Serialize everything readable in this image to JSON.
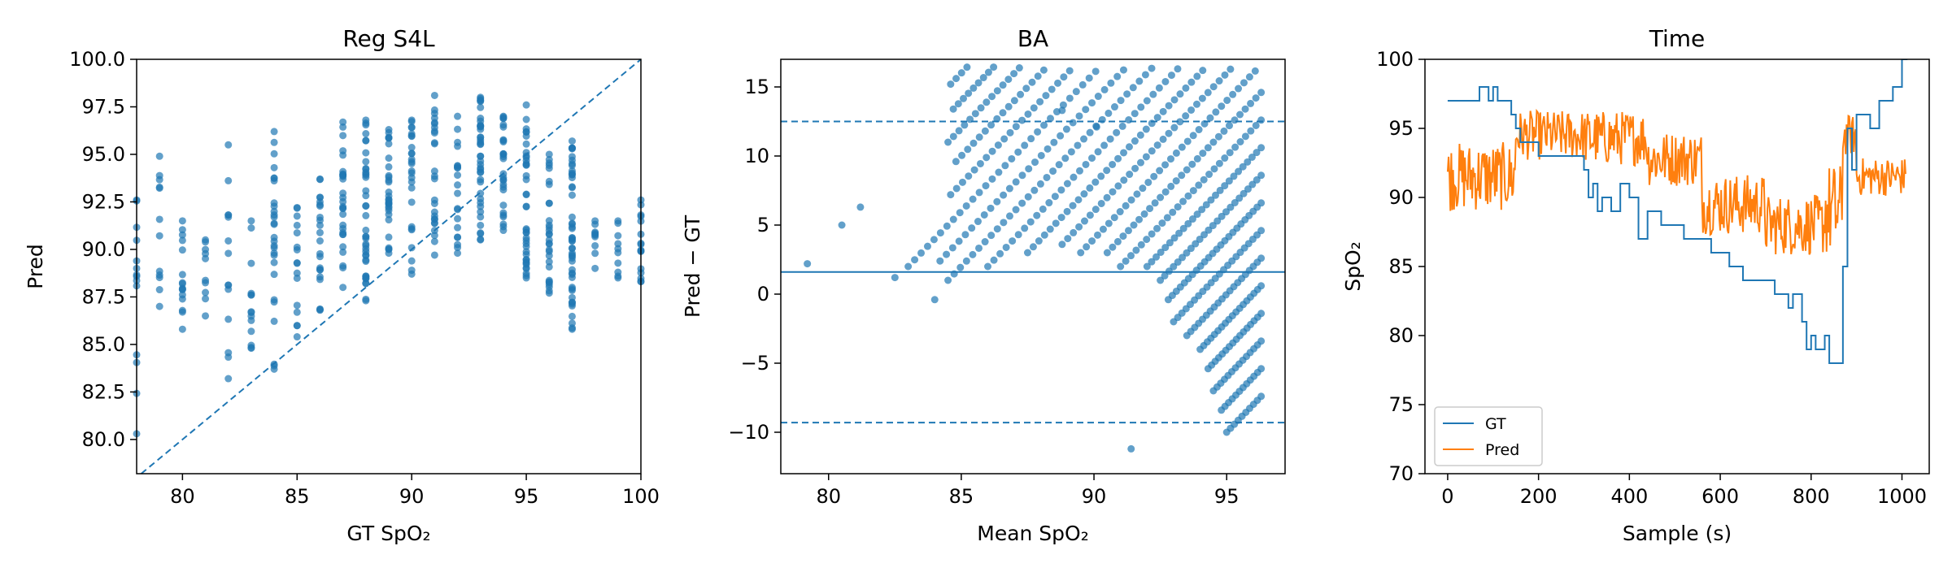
{
  "colors": {
    "blue": "#1f77b4",
    "orange": "#ff7f0e"
  },
  "chart_data": [
    {
      "type": "scatter",
      "title": "Reg S4L",
      "xlabel": "GT SpO₂",
      "ylabel": "Pred",
      "xlim": [
        78,
        100
      ],
      "ylim": [
        78.2,
        100
      ],
      "xticks": [
        80,
        85,
        90,
        95,
        100
      ],
      "yticks": [
        80.0,
        82.5,
        85.0,
        87.5,
        90.0,
        92.5,
        95.0,
        97.5,
        100.0
      ],
      "xtick_labels": [
        "80",
        "85",
        "90",
        "95",
        "100"
      ],
      "ytick_labels": [
        "80.0",
        "82.5",
        "85.0",
        "87.5",
        "90.0",
        "92.5",
        "95.0",
        "97.5",
        "100.0"
      ],
      "reference_line": "identity (y = x), dashed",
      "columns": [
        {
          "x": 78,
          "min": 80.3,
          "max": 92.6,
          "n": 14
        },
        {
          "x": 79,
          "min": 87.0,
          "max": 94.9,
          "n": 12
        },
        {
          "x": 80,
          "min": 85.8,
          "max": 91.5,
          "n": 16
        },
        {
          "x": 81,
          "min": 86.5,
          "max": 90.5,
          "n": 10
        },
        {
          "x": 82,
          "min": 83.2,
          "max": 95.5,
          "n": 14
        },
        {
          "x": 83,
          "min": 84.8,
          "max": 91.5,
          "n": 14
        },
        {
          "x": 84,
          "min": 83.7,
          "max": 96.2,
          "n": 28
        },
        {
          "x": 85,
          "min": 85.4,
          "max": 92.2,
          "n": 16
        },
        {
          "x": 86,
          "min": 86.8,
          "max": 93.7,
          "n": 22
        },
        {
          "x": 87,
          "min": 88.0,
          "max": 96.7,
          "n": 28
        },
        {
          "x": 88,
          "min": 87.3,
          "max": 96.8,
          "n": 40
        },
        {
          "x": 89,
          "min": 89.8,
          "max": 96.3,
          "n": 30
        },
        {
          "x": 90,
          "min": 88.7,
          "max": 96.8,
          "n": 26
        },
        {
          "x": 91,
          "min": 89.7,
          "max": 98.1,
          "n": 26
        },
        {
          "x": 92,
          "min": 89.8,
          "max": 97.0,
          "n": 20
        },
        {
          "x": 93,
          "min": 90.5,
          "max": 98.0,
          "n": 40
        },
        {
          "x": 94,
          "min": 91.0,
          "max": 97.0,
          "n": 28
        },
        {
          "x": 95,
          "min": 88.5,
          "max": 97.6,
          "n": 40
        },
        {
          "x": 96,
          "min": 87.7,
          "max": 95.0,
          "n": 30
        },
        {
          "x": 97,
          "min": 85.8,
          "max": 95.7,
          "n": 50
        },
        {
          "x": 98,
          "min": 89.0,
          "max": 91.5,
          "n": 10
        },
        {
          "x": 99,
          "min": 88.5,
          "max": 91.5,
          "n": 10
        },
        {
          "x": 100,
          "min": 88.3,
          "max": 92.6,
          "n": 16
        }
      ]
    },
    {
      "type": "scatter",
      "title": "BA",
      "xlabel": "Mean SpO₂",
      "ylabel": "Pred − GT",
      "xlim": [
        78.2,
        97.2
      ],
      "ylim": [
        -13,
        17
      ],
      "xticks": [
        80,
        85,
        90,
        95
      ],
      "yticks": [
        -10,
        -5,
        0,
        5,
        10,
        15
      ],
      "xtick_labels": [
        "80",
        "85",
        "90",
        "95"
      ],
      "ytick_labels": [
        "−10",
        "−5",
        "0",
        "5",
        "10",
        "15"
      ],
      "mean_line": 1.6,
      "loa_upper": 12.5,
      "loa_lower": -9.3,
      "bands": [
        {
          "gt": 73,
          "m": [
            83.5,
            87.0
          ],
          "n": 22
        },
        {
          "gt": 74,
          "m": [
            84.2,
            87.0
          ],
          "n": 20
        },
        {
          "gt": 75,
          "m": [
            84.5,
            88.0
          ],
          "n": 20
        },
        {
          "gt": 76,
          "m": [
            84.3,
            87.5
          ],
          "n": 18
        },
        {
          "gt": 77,
          "m": [
            84.6,
            88.5
          ],
          "n": 20
        },
        {
          "gt": 78,
          "m": [
            84.7,
            90.2
          ],
          "n": 30
        },
        {
          "gt": 79,
          "m": [
            84.5,
            90.5
          ],
          "n": 30
        },
        {
          "gt": 80,
          "m": [
            84.8,
            91.2
          ],
          "n": 30
        },
        {
          "gt": 81,
          "m": [
            84.6,
            92.0
          ],
          "n": 34
        },
        {
          "gt": 82,
          "m": [
            83.0,
            92.5
          ],
          "n": 40
        },
        {
          "gt": 83,
          "m": [
            84.2,
            93.5
          ],
          "n": 40
        },
        {
          "gt": 84,
          "m": [
            84.5,
            94.5
          ],
          "n": 44
        },
        {
          "gt": 85,
          "m": [
            86.0,
            95.0
          ],
          "n": 40
        },
        {
          "gt": 86,
          "m": [
            87.5,
            95.8
          ],
          "n": 40
        },
        {
          "gt": 87,
          "m": [
            88.8,
            96.2
          ],
          "n": 36
        },
        {
          "gt": 88,
          "m": [
            89.5,
            96.5
          ],
          "n": 34
        },
        {
          "gt": 89,
          "m": [
            90.5,
            96.3
          ],
          "n": 30
        },
        {
          "gt": 90,
          "m": [
            91.0,
            96.3
          ],
          "n": 28
        },
        {
          "gt": 91,
          "m": [
            92.0,
            96.3
          ],
          "n": 26
        },
        {
          "gt": 92,
          "m": [
            92.5,
            96.3
          ],
          "n": 24
        },
        {
          "gt": 93,
          "m": [
            92.8,
            96.3
          ],
          "n": 24
        },
        {
          "gt": 94,
          "m": [
            93.0,
            96.3
          ],
          "n": 22
        },
        {
          "gt": 95,
          "m": [
            93.5,
            96.3
          ],
          "n": 20
        },
        {
          "gt": 96,
          "m": [
            94.0,
            96.3
          ],
          "n": 18
        },
        {
          "gt": 97,
          "m": [
            94.3,
            96.3
          ],
          "n": 16
        },
        {
          "gt": 98,
          "m": [
            94.5,
            96.3
          ],
          "n": 14
        },
        {
          "gt": 99,
          "m": [
            94.8,
            96.3
          ],
          "n": 12
        },
        {
          "gt": 100,
          "m": [
            95.0,
            96.3
          ],
          "n": 10
        }
      ],
      "outliers": [
        {
          "x": 79.2,
          "y": 2.2
        },
        {
          "x": 80.5,
          "y": 5.0
        },
        {
          "x": 81.2,
          "y": 6.3
        },
        {
          "x": 88.8,
          "y": 13.3
        },
        {
          "x": 90.1,
          "y": 12.1
        },
        {
          "x": 82.5,
          "y": 1.2
        },
        {
          "x": 84.0,
          "y": -0.4
        },
        {
          "x": 91.4,
          "y": -11.2
        }
      ]
    },
    {
      "type": "line",
      "title": "Time",
      "xlabel": "Sample (s)",
      "ylabel": "SpO₂",
      "xlim": [
        -50,
        1060
      ],
      "ylim": [
        70,
        100
      ],
      "xticks": [
        0,
        200,
        400,
        600,
        800,
        1000
      ],
      "yticks": [
        70,
        75,
        80,
        85,
        90,
        95,
        100
      ],
      "xtick_labels": [
        "0",
        "200",
        "400",
        "600",
        "800",
        "1000"
      ],
      "ytick_labels": [
        "70",
        "75",
        "80",
        "85",
        "90",
        "95",
        "100"
      ],
      "legend_position": "lower-left",
      "series": [
        {
          "name": "GT",
          "color": "#1f77b4",
          "style": "step",
          "points": [
            [
              0,
              97
            ],
            [
              60,
              97
            ],
            [
              70,
              98
            ],
            [
              90,
              97
            ],
            [
              100,
              98
            ],
            [
              110,
              97
            ],
            [
              140,
              96
            ],
            [
              150,
              95
            ],
            [
              160,
              94
            ],
            [
              190,
              94
            ],
            [
              200,
              93
            ],
            [
              270,
              93
            ],
            [
              300,
              92
            ],
            [
              310,
              90
            ],
            [
              320,
              91
            ],
            [
              330,
              89
            ],
            [
              340,
              90
            ],
            [
              360,
              89
            ],
            [
              380,
              91
            ],
            [
              400,
              90
            ],
            [
              420,
              87
            ],
            [
              440,
              89
            ],
            [
              470,
              88
            ],
            [
              500,
              88
            ],
            [
              520,
              87
            ],
            [
              560,
              87
            ],
            [
              580,
              86
            ],
            [
              600,
              86
            ],
            [
              620,
              85
            ],
            [
              650,
              84
            ],
            [
              700,
              84
            ],
            [
              720,
              83
            ],
            [
              750,
              82
            ],
            [
              760,
              83
            ],
            [
              780,
              81
            ],
            [
              790,
              79
            ],
            [
              800,
              80
            ],
            [
              810,
              79
            ],
            [
              830,
              80
            ],
            [
              840,
              78
            ],
            [
              860,
              78
            ],
            [
              870,
              85
            ],
            [
              880,
              95
            ],
            [
              890,
              92
            ],
            [
              900,
              96
            ],
            [
              930,
              95
            ],
            [
              950,
              97
            ],
            [
              980,
              98
            ],
            [
              1000,
              100
            ]
          ]
        },
        {
          "name": "Pred",
          "color": "#ff7f0e",
          "style": "line",
          "segments": [
            {
              "x0": 0,
              "x1": 150,
              "center": 91.5,
              "amp": 2.5
            },
            {
              "x0": 150,
              "x1": 300,
              "center": 94.5,
              "amp": 1.8
            },
            {
              "x0": 300,
              "x1": 440,
              "center": 94.3,
              "amp": 2.0
            },
            {
              "x0": 440,
              "x1": 560,
              "center": 92.8,
              "amp": 2.0
            },
            {
              "x0": 560,
              "x1": 700,
              "center": 89.5,
              "amp": 2.2
            },
            {
              "x0": 700,
              "x1": 830,
              "center": 88.0,
              "amp": 2.2
            },
            {
              "x0": 830,
              "x1": 870,
              "center": 89.0,
              "amp": 3.5
            },
            {
              "x0": 870,
              "x1": 900,
              "center": 94.5,
              "amp": 1.5
            },
            {
              "x0": 900,
              "x1": 1010,
              "center": 91.5,
              "amp": 1.4
            }
          ]
        }
      ]
    }
  ]
}
